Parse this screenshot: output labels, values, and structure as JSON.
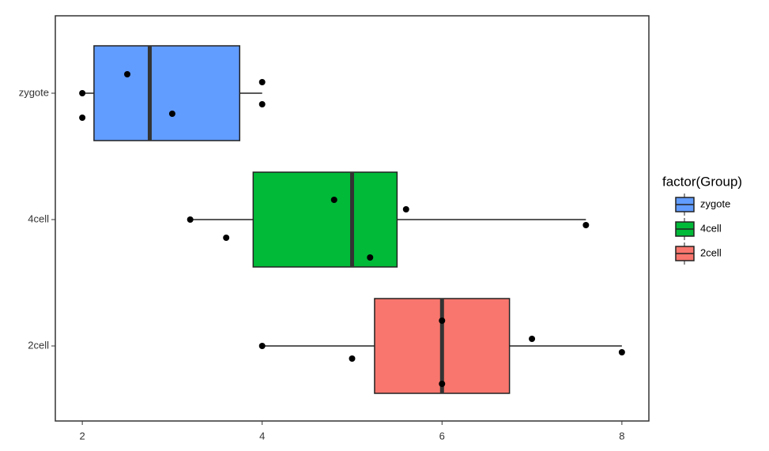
{
  "chart_data": {
    "type": "boxplot",
    "orientation": "horizontal",
    "legend_title": "factor(Group)",
    "legend_position": "right",
    "grid": false,
    "xlim": [
      1.7,
      8.3
    ],
    "xticks": [
      2,
      4,
      6,
      8
    ],
    "boxes": [
      {
        "name": "2cell",
        "color": "#F8766D",
        "min": 4,
        "q1": 5.25,
        "median": 6,
        "q3": 6.75,
        "max": 8,
        "points": [
          4,
          5,
          6,
          6,
          7,
          8
        ]
      },
      {
        "name": "4cell",
        "color": "#00BA38",
        "min": 3.2,
        "q1": 3.9,
        "median": 5,
        "q3": 5.5,
        "max": 7.6,
        "points": [
          3.2,
          3.6,
          4.8,
          5.2,
          5.6,
          7.6
        ]
      },
      {
        "name": "zygote",
        "color": "#619CFF",
        "min": 2,
        "q1": 2.13,
        "median": 2.75,
        "q3": 3.75,
        "max": 4,
        "points": [
          2,
          2,
          2.5,
          3,
          4,
          4
        ]
      }
    ]
  }
}
